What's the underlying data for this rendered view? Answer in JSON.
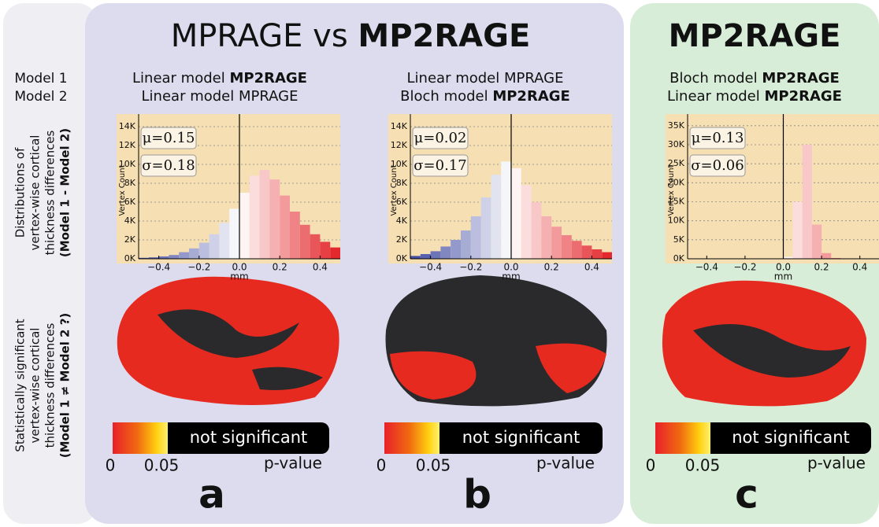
{
  "headings": {
    "middle": {
      "plain": "MPRAGE vs",
      "bold": "MP2RAGE"
    },
    "right": {
      "bold": "MP2RAGE"
    }
  },
  "row_labels": {
    "model1": "Model 1",
    "model2": "Model 2",
    "dist": [
      "Distributions of",
      "vertex-wise cortical",
      "thickness differences",
      "(Model 1 - Model 2)"
    ],
    "sig": [
      "Statistically significant",
      "vertex-wise cortical",
      "thickness differences",
      "(Model 1 ≠ Model 2 ?)"
    ]
  },
  "panels": [
    {
      "model1": {
        "plain": "Linear model",
        "bold": "MP2RAGE"
      },
      "model2": {
        "plain": "Linear model MPRAGE",
        "bold": ""
      },
      "letter": "a"
    },
    {
      "model1": {
        "plain": "Linear model MPRAGE",
        "bold": ""
      },
      "model2": {
        "plain": "Bloch model",
        "bold": "MP2RAGE"
      },
      "letter": "b"
    },
    {
      "model1": {
        "plain": "Bloch model",
        "bold": "MP2RAGE"
      },
      "model2": {
        "plain": "Linear model",
        "bold": "MP2RAGE"
      },
      "letter": "c"
    }
  ],
  "colorbar": {
    "text": "not significant",
    "low": "0",
    "threshold": "0.05",
    "label": "p-value"
  },
  "chart_data": [
    {
      "type": "histogram",
      "y_label": "Vertex Count",
      "x_label": "mm",
      "annotations": [
        "μ=0.15",
        "σ=0.18"
      ],
      "bins": [
        -0.5,
        -0.45,
        -0.4,
        -0.35,
        -0.3,
        -0.25,
        -0.2,
        -0.15,
        -0.1,
        -0.05,
        0,
        0.05,
        0.1,
        0.15,
        0.2,
        0.25,
        0.3,
        0.35,
        0.4,
        0.45,
        0.5
      ],
      "values": [
        100,
        150,
        250,
        400,
        700,
        1100,
        1700,
        2600,
        3800,
        5300,
        7000,
        8800,
        9400,
        8400,
        6700,
        5000,
        3600,
        2600,
        1800,
        1200
      ],
      "xlim": [
        -0.5,
        0.5
      ],
      "xticks": [
        {
          "value": -0.4,
          "label": "−0.4"
        },
        {
          "value": -0.2,
          "label": "−0.2"
        },
        {
          "value": 0,
          "label": "0.0"
        },
        0.2,
        0.4
      ],
      "ylim": [
        0,
        14500
      ],
      "yticks": [
        {
          "value": 0,
          "label": "0K"
        },
        {
          "value": 2000,
          "label": "2K"
        },
        {
          "value": 4000,
          "label": "4K"
        },
        {
          "value": 6000,
          "label": "6K"
        },
        {
          "value": 8000,
          "label": "8K"
        },
        {
          "value": 10000,
          "label": "10K"
        },
        {
          "value": 12000,
          "label": "12K"
        },
        {
          "value": 14000,
          "label": "14K"
        }
      ],
      "grid": true
    },
    {
      "type": "histogram",
      "y_label": "Vertex Count",
      "x_label": "mm",
      "annotations": [
        "μ=0.02",
        "σ=0.17"
      ],
      "bins": [
        -0.5,
        -0.45,
        -0.4,
        -0.35,
        -0.3,
        -0.25,
        -0.2,
        -0.15,
        -0.1,
        -0.05,
        0,
        0.05,
        0.1,
        0.15,
        0.2,
        0.25,
        0.3,
        0.35,
        0.4,
        0.45,
        0.5
      ],
      "values": [
        300,
        500,
        800,
        1300,
        2000,
        3000,
        4500,
        6500,
        8900,
        10300,
        9600,
        7800,
        6000,
        4500,
        3400,
        2500,
        1900,
        1400,
        1000,
        700
      ],
      "xlim": [
        -0.5,
        0.5
      ],
      "xticks": [
        {
          "value": -0.4,
          "label": "−0.4"
        },
        {
          "value": -0.2,
          "label": "−0.2"
        },
        {
          "value": 0,
          "label": "0.0"
        },
        0.2,
        0.4
      ],
      "ylim": [
        0,
        14500
      ],
      "yticks": [
        {
          "value": 0,
          "label": "0K"
        },
        {
          "value": 2000,
          "label": "2K"
        },
        {
          "value": 4000,
          "label": "4K"
        },
        {
          "value": 6000,
          "label": "6K"
        },
        {
          "value": 8000,
          "label": "8K"
        },
        {
          "value": 10000,
          "label": "10K"
        },
        {
          "value": 12000,
          "label": "12K"
        },
        {
          "value": 14000,
          "label": "14K"
        }
      ],
      "grid": true
    },
    {
      "type": "histogram",
      "y_label": "Vertex Count",
      "x_label": "mm",
      "annotations": [
        "μ=0.13",
        "σ=0.06"
      ],
      "bins": [
        -0.5,
        -0.45,
        -0.4,
        -0.35,
        -0.3,
        -0.25,
        -0.2,
        -0.15,
        -0.1,
        -0.05,
        0,
        0.05,
        0.1,
        0.15,
        0.2,
        0.25,
        0.3,
        0.35,
        0.4,
        0.45,
        0.5
      ],
      "values": [
        0,
        0,
        0,
        0,
        0,
        0,
        0,
        0,
        0,
        0,
        500,
        15000,
        30000,
        9000,
        1500,
        200,
        0,
        0,
        0,
        0
      ],
      "xlim": [
        -0.5,
        0.5
      ],
      "xticks": [
        {
          "value": -0.4,
          "label": "−0.4"
        },
        {
          "value": -0.2,
          "label": "−0.2"
        },
        {
          "value": 0,
          "label": "0.0"
        },
        0.2,
        0.4
      ],
      "ylim": [
        0,
        36000
      ],
      "yticks": [
        {
          "value": 0,
          "label": "0K"
        },
        {
          "value": 5000,
          "label": "5K"
        },
        {
          "value": 10000,
          "label": "10K"
        },
        {
          "value": 15000,
          "label": "15K"
        },
        {
          "value": 20000,
          "label": "20K"
        },
        {
          "value": 25000,
          "label": "25K"
        },
        {
          "value": 30000,
          "label": "30K"
        },
        {
          "value": 35000,
          "label": "35K"
        }
      ],
      "grid": true
    }
  ]
}
